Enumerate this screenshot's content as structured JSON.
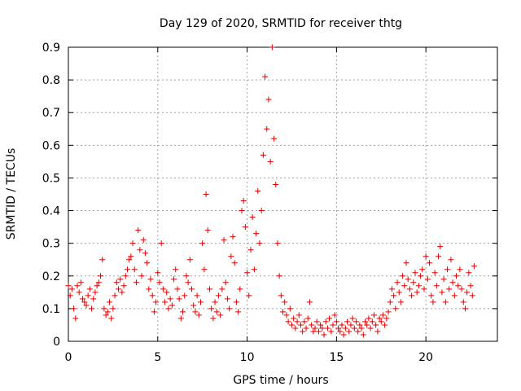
{
  "chart_data": {
    "type": "scatter",
    "title": "Day 129 of 2020, SRMTID for receiver thtg",
    "xlabel": "GPS time / hours",
    "ylabel": "SRMTID / TECUs",
    "xlim": [
      0,
      24
    ],
    "ylim": [
      0,
      0.9
    ],
    "xticks": [
      0,
      5,
      10,
      15,
      20
    ],
    "xtick_labels": [
      "0",
      "5",
      "10",
      "15",
      "20"
    ],
    "yticks": [
      0,
      0.1,
      0.2,
      0.3,
      0.4,
      0.5,
      0.6,
      0.7,
      0.8,
      0.9
    ],
    "ytick_labels": [
      "0",
      "0.1",
      "0.2",
      "0.3",
      "0.4",
      "0.5",
      "0.6",
      "0.7",
      "0.8",
      "0.9"
    ],
    "grid": true,
    "marker": "+",
    "color": "#e00000",
    "series": [
      {
        "name": "SRMTID",
        "points": [
          [
            0.0,
            0.17
          ],
          [
            0.1,
            0.14
          ],
          [
            0.2,
            0.16
          ],
          [
            0.3,
            0.1
          ],
          [
            0.4,
            0.07
          ],
          [
            0.5,
            0.17
          ],
          [
            0.6,
            0.15
          ],
          [
            0.7,
            0.18
          ],
          [
            0.8,
            0.13
          ],
          [
            0.9,
            0.12
          ],
          [
            1.0,
            0.11
          ],
          [
            1.1,
            0.14
          ],
          [
            1.2,
            0.16
          ],
          [
            1.3,
            0.1
          ],
          [
            1.4,
            0.13
          ],
          [
            1.5,
            0.15
          ],
          [
            1.6,
            0.17
          ],
          [
            1.7,
            0.18
          ],
          [
            1.8,
            0.2
          ],
          [
            1.9,
            0.25
          ],
          [
            2.0,
            0.1
          ],
          [
            2.1,
            0.08
          ],
          [
            2.2,
            0.09
          ],
          [
            2.3,
            0.12
          ],
          [
            2.4,
            0.07
          ],
          [
            2.5,
            0.1
          ],
          [
            2.6,
            0.14
          ],
          [
            2.7,
            0.18
          ],
          [
            2.8,
            0.16
          ],
          [
            2.9,
            0.19
          ],
          [
            3.0,
            0.15
          ],
          [
            3.1,
            0.17
          ],
          [
            3.2,
            0.2
          ],
          [
            3.3,
            0.22
          ],
          [
            3.4,
            0.25
          ],
          [
            3.5,
            0.26
          ],
          [
            3.6,
            0.3
          ],
          [
            3.7,
            0.22
          ],
          [
            3.8,
            0.18
          ],
          [
            3.9,
            0.34
          ],
          [
            4.0,
            0.28
          ],
          [
            4.1,
            0.2
          ],
          [
            4.2,
            0.31
          ],
          [
            4.3,
            0.27
          ],
          [
            4.4,
            0.24
          ],
          [
            4.5,
            0.16
          ],
          [
            4.6,
            0.19
          ],
          [
            4.7,
            0.14
          ],
          [
            4.8,
            0.09
          ],
          [
            4.9,
            0.12
          ],
          [
            5.0,
            0.21
          ],
          [
            5.1,
            0.18
          ],
          [
            5.2,
            0.3
          ],
          [
            5.3,
            0.16
          ],
          [
            5.4,
            0.12
          ],
          [
            5.5,
            0.15
          ],
          [
            5.6,
            0.1
          ],
          [
            5.7,
            0.13
          ],
          [
            5.8,
            0.11
          ],
          [
            5.9,
            0.19
          ],
          [
            6.0,
            0.22
          ],
          [
            6.1,
            0.16
          ],
          [
            6.2,
            0.13
          ],
          [
            6.3,
            0.07
          ],
          [
            6.4,
            0.09
          ],
          [
            6.5,
            0.14
          ],
          [
            6.6,
            0.2
          ],
          [
            6.7,
            0.18
          ],
          [
            6.8,
            0.25
          ],
          [
            6.9,
            0.16
          ],
          [
            7.0,
            0.11
          ],
          [
            7.1,
            0.09
          ],
          [
            7.2,
            0.14
          ],
          [
            7.3,
            0.08
          ],
          [
            7.4,
            0.12
          ],
          [
            7.5,
            0.3
          ],
          [
            7.6,
            0.22
          ],
          [
            7.7,
            0.45
          ],
          [
            7.8,
            0.34
          ],
          [
            7.9,
            0.16
          ],
          [
            8.0,
            0.1
          ],
          [
            8.1,
            0.07
          ],
          [
            8.2,
            0.12
          ],
          [
            8.3,
            0.09
          ],
          [
            8.4,
            0.14
          ],
          [
            8.5,
            0.08
          ],
          [
            8.6,
            0.16
          ],
          [
            8.7,
            0.31
          ],
          [
            8.8,
            0.18
          ],
          [
            8.9,
            0.13
          ],
          [
            9.0,
            0.1
          ],
          [
            9.1,
            0.26
          ],
          [
            9.2,
            0.32
          ],
          [
            9.3,
            0.24
          ],
          [
            9.4,
            0.12
          ],
          [
            9.5,
            0.09
          ],
          [
            9.6,
            0.16
          ],
          [
            9.7,
            0.4
          ],
          [
            9.8,
            0.43
          ],
          [
            9.9,
            0.35
          ],
          [
            10.0,
            0.21
          ],
          [
            10.1,
            0.14
          ],
          [
            10.2,
            0.28
          ],
          [
            10.3,
            0.38
          ],
          [
            10.4,
            0.22
          ],
          [
            10.5,
            0.33
          ],
          [
            10.6,
            0.46
          ],
          [
            10.7,
            0.3
          ],
          [
            10.8,
            0.4
          ],
          [
            10.9,
            0.57
          ],
          [
            11.0,
            0.81
          ],
          [
            11.1,
            0.65
          ],
          [
            11.2,
            0.74
          ],
          [
            11.3,
            0.55
          ],
          [
            11.4,
            0.9
          ],
          [
            11.5,
            0.62
          ],
          [
            11.6,
            0.48
          ],
          [
            11.7,
            0.3
          ],
          [
            11.8,
            0.2
          ],
          [
            11.9,
            0.14
          ],
          [
            12.0,
            0.09
          ],
          [
            12.1,
            0.12
          ],
          [
            12.2,
            0.08
          ],
          [
            12.3,
            0.06
          ],
          [
            12.4,
            0.1
          ],
          [
            12.5,
            0.05
          ],
          [
            12.6,
            0.07
          ],
          [
            12.7,
            0.04
          ],
          [
            12.8,
            0.06
          ],
          [
            12.9,
            0.08
          ],
          [
            13.0,
            0.05
          ],
          [
            13.1,
            0.03
          ],
          [
            13.2,
            0.06
          ],
          [
            13.3,
            0.04
          ],
          [
            13.4,
            0.07
          ],
          [
            13.5,
            0.12
          ],
          [
            13.6,
            0.05
          ],
          [
            13.7,
            0.03
          ],
          [
            13.8,
            0.04
          ],
          [
            13.9,
            0.06
          ],
          [
            14.0,
            0.03
          ],
          [
            14.1,
            0.05
          ],
          [
            14.2,
            0.04
          ],
          [
            14.3,
            0.02
          ],
          [
            14.4,
            0.06
          ],
          [
            14.5,
            0.04
          ],
          [
            14.6,
            0.07
          ],
          [
            14.7,
            0.03
          ],
          [
            14.8,
            0.05
          ],
          [
            14.9,
            0.08
          ],
          [
            15.0,
            0.06
          ],
          [
            15.1,
            0.04
          ],
          [
            15.2,
            0.03
          ],
          [
            15.3,
            0.05
          ],
          [
            15.4,
            0.02
          ],
          [
            15.5,
            0.04
          ],
          [
            15.6,
            0.06
          ],
          [
            15.7,
            0.03
          ],
          [
            15.8,
            0.05
          ],
          [
            15.9,
            0.07
          ],
          [
            16.0,
            0.04
          ],
          [
            16.1,
            0.06
          ],
          [
            16.2,
            0.03
          ],
          [
            16.3,
            0.05
          ],
          [
            16.4,
            0.04
          ],
          [
            16.5,
            0.02
          ],
          [
            16.6,
            0.06
          ],
          [
            16.7,
            0.05
          ],
          [
            16.8,
            0.07
          ],
          [
            16.9,
            0.04
          ],
          [
            17.0,
            0.06
          ],
          [
            17.1,
            0.08
          ],
          [
            17.2,
            0.05
          ],
          [
            17.3,
            0.03
          ],
          [
            17.4,
            0.07
          ],
          [
            17.5,
            0.06
          ],
          [
            17.6,
            0.08
          ],
          [
            17.7,
            0.05
          ],
          [
            17.8,
            0.07
          ],
          [
            17.9,
            0.09
          ],
          [
            18.0,
            0.12
          ],
          [
            18.1,
            0.16
          ],
          [
            18.2,
            0.14
          ],
          [
            18.3,
            0.1
          ],
          [
            18.4,
            0.18
          ],
          [
            18.5,
            0.15
          ],
          [
            18.6,
            0.12
          ],
          [
            18.7,
            0.2
          ],
          [
            18.8,
            0.17
          ],
          [
            18.9,
            0.24
          ],
          [
            19.0,
            0.19
          ],
          [
            19.1,
            0.16
          ],
          [
            19.2,
            0.14
          ],
          [
            19.3,
            0.18
          ],
          [
            19.4,
            0.21
          ],
          [
            19.5,
            0.15
          ],
          [
            19.6,
            0.17
          ],
          [
            19.7,
            0.2
          ],
          [
            19.8,
            0.22
          ],
          [
            19.9,
            0.16
          ],
          [
            20.0,
            0.26
          ],
          [
            20.1,
            0.19
          ],
          [
            20.2,
            0.24
          ],
          [
            20.3,
            0.14
          ],
          [
            20.4,
            0.12
          ],
          [
            20.5,
            0.21
          ],
          [
            20.6,
            0.17
          ],
          [
            20.7,
            0.26
          ],
          [
            20.8,
            0.29
          ],
          [
            20.9,
            0.15
          ],
          [
            21.0,
            0.19
          ],
          [
            21.1,
            0.12
          ],
          [
            21.2,
            0.22
          ],
          [
            21.3,
            0.16
          ],
          [
            21.4,
            0.25
          ],
          [
            21.5,
            0.18
          ],
          [
            21.6,
            0.14
          ],
          [
            21.7,
            0.2
          ],
          [
            21.8,
            0.17
          ],
          [
            21.9,
            0.22
          ],
          [
            22.0,
            0.16
          ],
          [
            22.1,
            0.12
          ],
          [
            22.2,
            0.1
          ],
          [
            22.3,
            0.15
          ],
          [
            22.4,
            0.21
          ],
          [
            22.5,
            0.17
          ],
          [
            22.6,
            0.14
          ],
          [
            22.7,
            0.23
          ]
        ]
      }
    ]
  }
}
